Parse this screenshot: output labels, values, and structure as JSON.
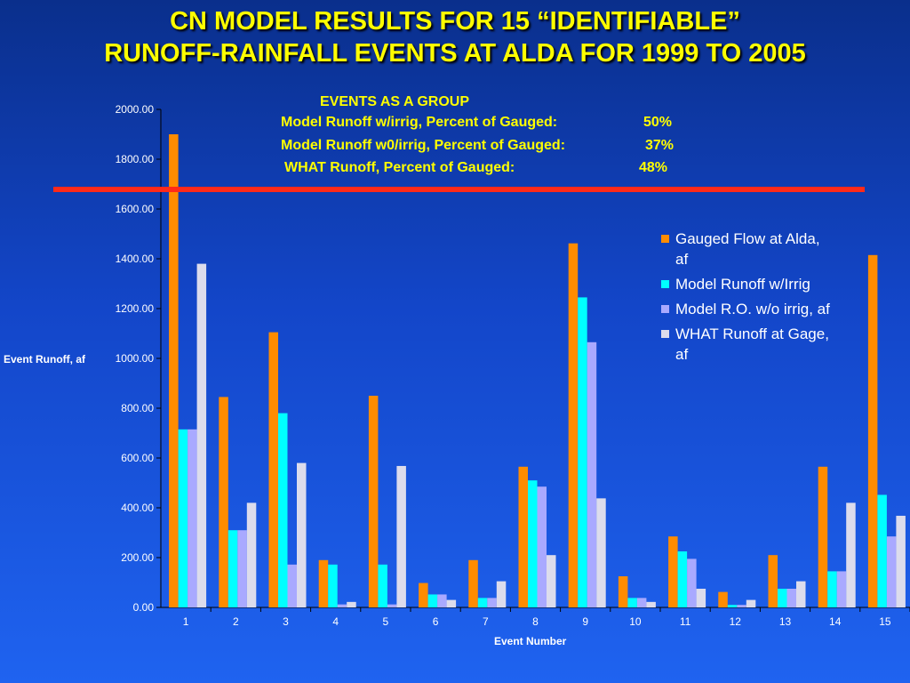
{
  "title": {
    "line1": "CN MODEL RESULTS FOR 15 “IDENTIFIABLE”",
    "line2": "RUNOFF-RAINFALL EVENTS AT ALDA FOR 1999 TO 2005"
  },
  "annotation": {
    "heading": "EVENTS AS A GROUP",
    "line1_label": "Model Runoff w/irrig, Percent of Gauged:",
    "line1_value": "50%",
    "line2_label": "Model Runoff w0/irrig, Percent of Gauged:",
    "line2_value": "37%",
    "line3_label": "WHAT Runoff, Percent of Gauged:",
    "line3_value": "48%"
  },
  "reference_line": {
    "color": "#ff2a1a",
    "y_value": 1680
  },
  "chart_data": {
    "type": "bar",
    "ylabel": "Event Runoff, af",
    "xlabel": "Event Number",
    "ylim": [
      0,
      2000
    ],
    "yticks": [
      0,
      200,
      400,
      600,
      800,
      1000,
      1200,
      1400,
      1600,
      1800,
      2000
    ],
    "ytick_labels": [
      "0.00",
      "200.00",
      "400.00",
      "600.00",
      "800.00",
      "1000.00",
      "1200.00",
      "1400.00",
      "1600.00",
      "1800.00",
      "2000.00"
    ],
    "categories": [
      "1",
      "2",
      "3",
      "4",
      "5",
      "6",
      "7",
      "8",
      "9",
      "10",
      "11",
      "12",
      "13",
      "14",
      "15"
    ],
    "legend_position": "right",
    "grid": false,
    "series": [
      {
        "name": "Gauged Flow at Alda, af",
        "color": "#ff8c00",
        "values": [
          1900,
          845,
          1105,
          190,
          850,
          98,
          190,
          565,
          1462,
          125,
          285,
          62,
          210,
          565,
          1415
        ]
      },
      {
        "name": "Model Runoff w/Irrig",
        "color": "#00ffff",
        "values": [
          715,
          310,
          780,
          172,
          172,
          52,
          38,
          510,
          1245,
          38,
          225,
          10,
          75,
          145,
          452
        ]
      },
      {
        "name": "Model R.O. w/o irrig, af",
        "color": "#a9a9ff",
        "values": [
          715,
          310,
          172,
          12,
          12,
          52,
          38,
          485,
          1065,
          38,
          195,
          10,
          75,
          145,
          285
        ]
      },
      {
        "name": "WHAT Runoff at Gage, af",
        "color": "#dcdcec",
        "values": [
          1380,
          420,
          580,
          22,
          568,
          30,
          105,
          210,
          438,
          22,
          75,
          30,
          105,
          420,
          368
        ]
      }
    ]
  }
}
